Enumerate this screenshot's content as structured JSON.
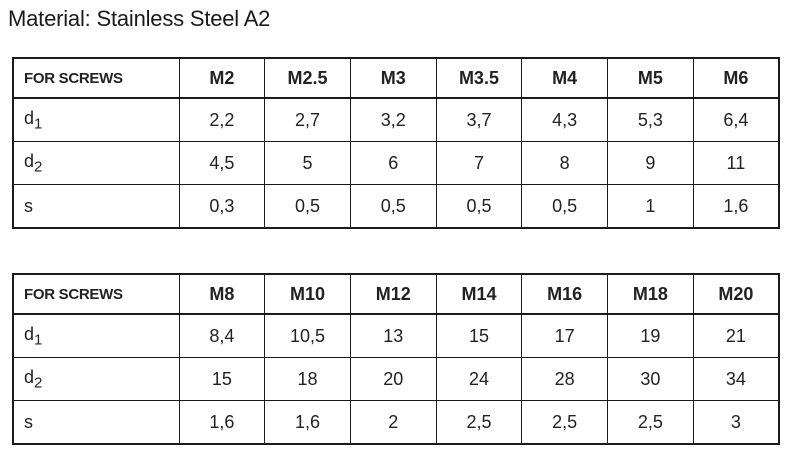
{
  "title": "Material: Stainless Steel A2",
  "tables": [
    {
      "header": [
        "FOR SCREWS",
        "M2",
        "M2.5",
        "M3",
        "M3.5",
        "M4",
        "M5",
        "M6"
      ],
      "rows": [
        {
          "label": "d1",
          "values": [
            "2,2",
            "2,7",
            "3,2",
            "3,7",
            "4,3",
            "5,3",
            "6,4"
          ]
        },
        {
          "label": "d2",
          "values": [
            "4,5",
            "5",
            "6",
            "7",
            "8",
            "9",
            "11"
          ]
        },
        {
          "label": "s",
          "values": [
            "0,3",
            "0,5",
            "0,5",
            "0,5",
            "0,5",
            "1",
            "1,6"
          ]
        }
      ]
    },
    {
      "header": [
        "FOR SCREWS",
        "M8",
        "M10",
        "M12",
        "M14",
        "M16",
        "M18",
        "M20"
      ],
      "rows": [
        {
          "label": "d1",
          "values": [
            "8,4",
            "10,5",
            "13",
            "15",
            "17",
            "19",
            "21"
          ]
        },
        {
          "label": "d2",
          "values": [
            "15",
            "18",
            "20",
            "24",
            "28",
            "30",
            "34"
          ]
        },
        {
          "label": "s",
          "values": [
            "1,6",
            "1,6",
            "2",
            "2,5",
            "2,5",
            "2,5",
            "3"
          ]
        }
      ]
    }
  ]
}
